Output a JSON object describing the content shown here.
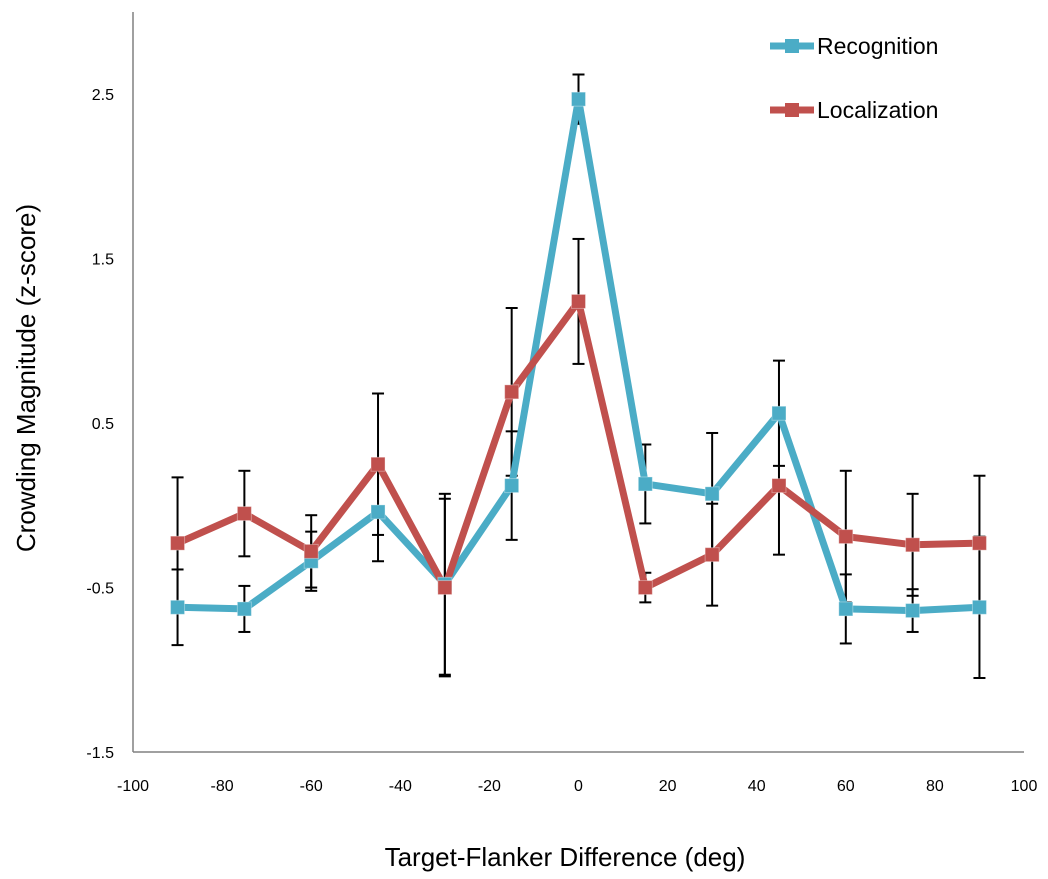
{
  "chart_data": {
    "type": "line",
    "title": "",
    "xlabel": "Target-Flanker Difference (deg)",
    "ylabel": "Crowding Magnitude (z-score)",
    "xlim": [
      -100,
      100
    ],
    "ylim": [
      -1.5,
      3.0
    ],
    "x_ticks": [
      -100,
      -80,
      -60,
      -40,
      -20,
      0,
      20,
      40,
      60,
      80,
      100
    ],
    "y_ticks": [
      -1.5,
      -0.5,
      0.5,
      1.5,
      2.5
    ],
    "x_tick_labels": [
      "-100",
      "-80",
      "-60",
      "-40",
      "-20",
      "0",
      "20",
      "40",
      "60",
      "80",
      "100"
    ],
    "y_tick_labels": [
      "-1.5",
      "-0.5",
      "0.5",
      "1.5",
      "2.5"
    ],
    "grid": false,
    "legend_position": "top-right",
    "x": [
      -90,
      -75,
      -60,
      -45,
      -30,
      -15,
      0,
      15,
      30,
      45,
      60,
      75,
      90
    ],
    "series": [
      {
        "name": "Recognition",
        "color": "#4bacc6",
        "marker": "square",
        "values": [
          -0.62,
          -0.63,
          -0.34,
          -0.04,
          -0.48,
          0.12,
          2.47,
          0.13,
          0.07,
          0.56,
          -0.63,
          -0.64,
          -0.62
        ],
        "error": [
          0.23,
          0.14,
          0.18,
          0.3,
          0.55,
          0.33,
          0.15,
          0.24,
          0.37,
          0.32,
          0.21,
          0.13,
          0.43
        ]
      },
      {
        "name": "Localization",
        "color": "#c0504d",
        "marker": "square",
        "values": [
          -0.23,
          -0.05,
          -0.28,
          0.25,
          -0.5,
          0.69,
          1.24,
          -0.5,
          -0.3,
          0.12,
          -0.19,
          -0.24,
          -0.23
        ],
        "error": [
          0.4,
          0.26,
          0.22,
          0.43,
          0.54,
          0.51,
          0.38,
          0.09,
          0.31,
          0.42,
          0.4,
          0.31,
          0.41
        ]
      }
    ]
  }
}
